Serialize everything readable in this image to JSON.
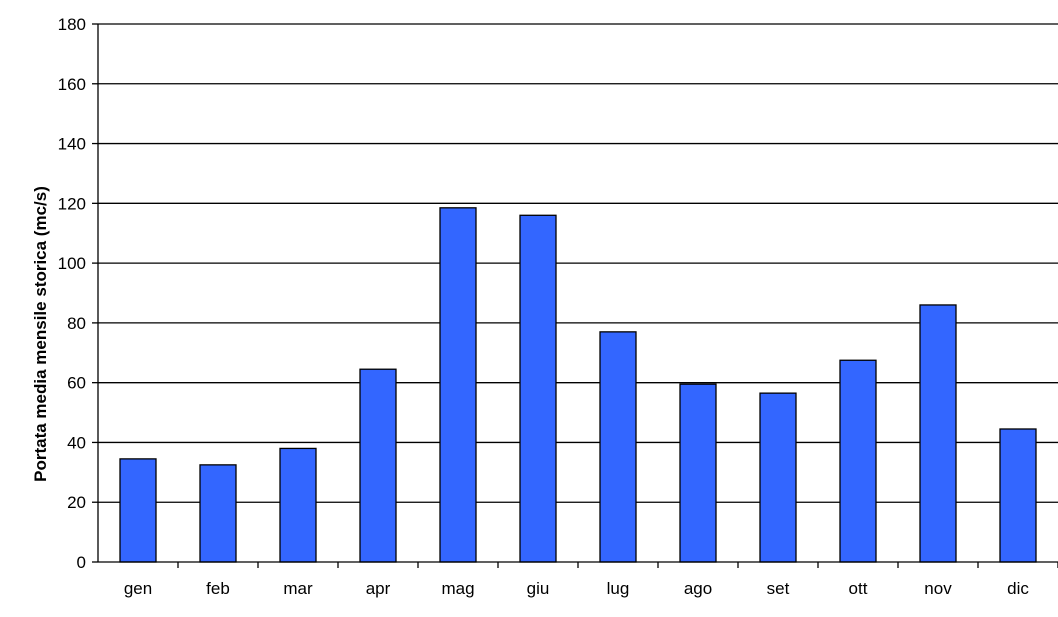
{
  "chart_data": {
    "type": "bar",
    "title": "",
    "xlabel": "",
    "ylabel": "Portata media mensile storica (mc/s)",
    "categories": [
      "gen",
      "feb",
      "mar",
      "apr",
      "mag",
      "giu",
      "lug",
      "ago",
      "set",
      "ott",
      "nov",
      "dic"
    ],
    "values": [
      34.5,
      32.5,
      38,
      64.5,
      118.5,
      116,
      77,
      59.5,
      56.5,
      67.5,
      86,
      44.5
    ],
    "ylim": [
      0,
      180
    ],
    "yticks": [
      0,
      20,
      40,
      60,
      80,
      100,
      120,
      140,
      160,
      180
    ],
    "grid": true,
    "legend": "none",
    "colors": {
      "bar_fill": "#3366ff",
      "bar_stroke": "#000000",
      "grid": "#000000",
      "background": "#ffffff"
    }
  }
}
